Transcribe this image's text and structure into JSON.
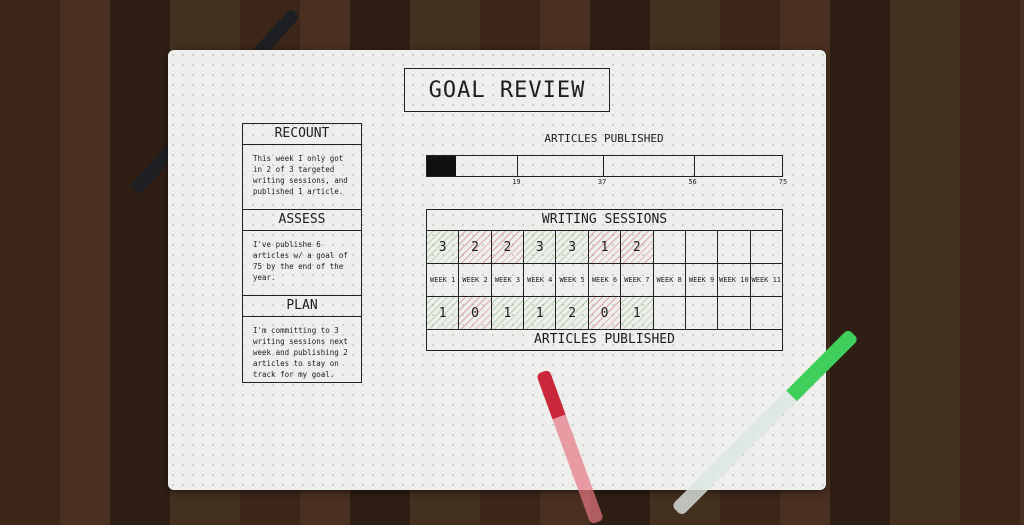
{
  "title": "GOAL REVIEW",
  "sidebar": [
    {
      "heading": "RECOUNT",
      "text": "This week I only got in 2 of 3 targeted writing sessions, and published 1 article."
    },
    {
      "heading": "ASSESS",
      "text": "I've publishe 6 articles w/ a goal of 75 by the end of the year."
    },
    {
      "heading": "PLAN",
      "text": "I'm committing to 3 writing sessions next week and publishing 2 articles to stay on track for my goal."
    }
  ],
  "progress": {
    "label": "ARTICLES PUBLISHED",
    "value": 6,
    "max": 75,
    "ticks": [
      "19",
      "37",
      "56",
      "75"
    ]
  },
  "table": {
    "header": "WRITING SESSIONS",
    "footer": "ARTICLES PUBLISHED",
    "sessions": [
      "3",
      "2",
      "2",
      "3",
      "3",
      "1",
      "2",
      "",
      "",
      "",
      ""
    ],
    "session_colors": [
      "g",
      "r",
      "r",
      "g",
      "g",
      "r",
      "r",
      "",
      "",
      "",
      ""
    ],
    "weeks": [
      "WEEK 1",
      "WEEK 2",
      "WEEK 3",
      "WEEK 4",
      "WEEK 5",
      "WEEK 6",
      "WEEK 7",
      "WEEK 8",
      "WEEK 9",
      "WEEK 10",
      "WEEK 11"
    ],
    "articles": [
      "1",
      "0",
      "1",
      "1",
      "2",
      "0",
      "1",
      "",
      "",
      "",
      ""
    ],
    "article_colors": [
      "g",
      "r",
      "g",
      "g",
      "g",
      "r",
      "g",
      "",
      "",
      "",
      ""
    ]
  },
  "colors": {
    "green_hatch": "#78b464",
    "red_hatch": "#c8505a",
    "wood": "#3b2619",
    "paper": "#eeeeec"
  }
}
